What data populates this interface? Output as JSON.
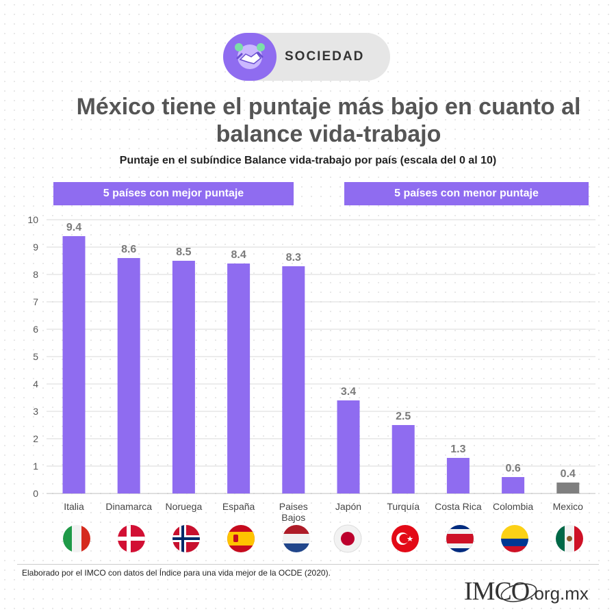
{
  "badge": {
    "label": "SOCIEDAD",
    "icon": "handshake-icon"
  },
  "title": "México tiene el puntaje más bajo en cuanto al balance vida-trabajo",
  "subtitle": "Puntaje en el subíndice Balance vida-trabajo por país (escala del 0 al 10)",
  "groups": {
    "best": "5 países con mejor puntaje",
    "worst": "5 países con menor puntaje"
  },
  "colors": {
    "bar": "#8f6cf0",
    "highlight": "#7f7f7f",
    "grid": "#d9d9d9",
    "label": "#7a7a7a"
  },
  "chart_data": {
    "type": "bar",
    "categories": [
      "Italia",
      "Dinamarca",
      "Noruega",
      "España",
      "Paises Bajos",
      "Japón",
      "Turquía",
      "Costa Rica",
      "Colombia",
      "Mexico"
    ],
    "values": [
      9.4,
      8.6,
      8.5,
      8.4,
      8.3,
      3.4,
      2.5,
      1.3,
      0.6,
      0.4
    ],
    "highlight": "Mexico",
    "ylim": [
      0,
      10
    ],
    "yticks": [
      0,
      1,
      2,
      3,
      4,
      5,
      6,
      7,
      8,
      9,
      10
    ],
    "grid": true,
    "xlabel": "",
    "ylabel": ""
  },
  "flags": [
    "italy-flag-icon",
    "denmark-flag-icon",
    "norway-flag-icon",
    "spain-flag-icon",
    "netherlands-flag-icon",
    "japan-flag-icon",
    "turkey-flag-icon",
    "costa-rica-flag-icon",
    "colombia-flag-icon",
    "mexico-flag-icon"
  ],
  "footer": {
    "source": "Elaborado por el IMCO con datos del Índice para una vida mejor de la OCDE (2020).",
    "logo_main": "IMCO",
    "logo_suffix": ".org.mx"
  }
}
